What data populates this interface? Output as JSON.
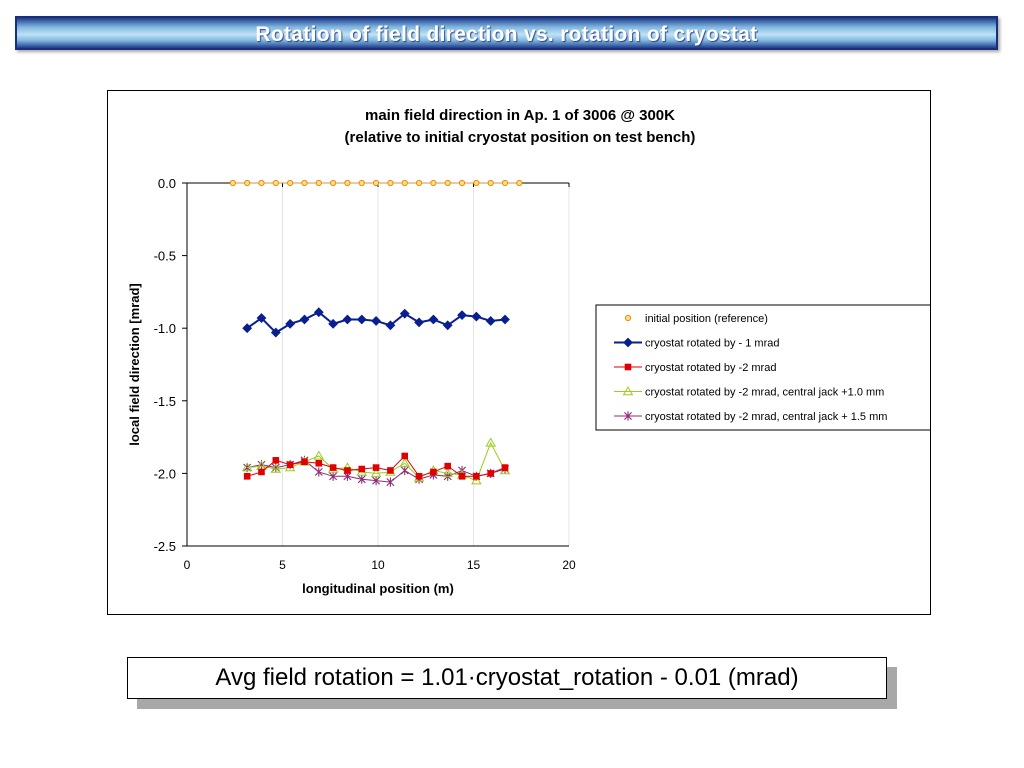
{
  "slide": {
    "title": "Rotation of field direction vs. rotation of cryostat",
    "formula": "Avg field rotation = 1.01·cryostat_rotation - 0.01 (mrad)"
  },
  "chart_data": {
    "type": "line",
    "title": "main field direction in Ap. 1 of 3006 @ 300K",
    "subtitle": "(relative to initial cryostat position on test bench)",
    "xlabel": "longitudinal position (m)",
    "ylabel": "local field direction [mrad]",
    "xlim": [
      0,
      20
    ],
    "ylim": [
      -2.5,
      0.0
    ],
    "xticks": [
      "0",
      "5",
      "10",
      "15",
      "20"
    ],
    "yticks": [
      "0.0",
      "-0.5",
      "-1.0",
      "-1.5",
      "-2.0",
      "-2.5"
    ],
    "grid": "vertical",
    "legend_position": "right",
    "series": [
      {
        "name": "initial position (reference)",
        "color": "#f08a00",
        "marker": "circle",
        "x": [
          2.4,
          3.15,
          3.9,
          4.65,
          5.4,
          6.15,
          6.9,
          7.65,
          8.4,
          9.15,
          9.9,
          10.65,
          11.4,
          12.15,
          12.9,
          13.65,
          14.4,
          15.15,
          15.9,
          16.65,
          17.4
        ],
        "y": [
          0,
          0,
          0,
          0,
          0,
          0,
          0,
          0,
          0,
          0,
          0,
          0,
          0,
          0,
          0,
          0,
          0,
          0,
          0,
          0,
          0
        ]
      },
      {
        "name": "cryostat rotated by - 1 mrad",
        "color": "#0a1f8f",
        "marker": "diamond",
        "x": [
          3.15,
          3.9,
          4.65,
          5.4,
          6.15,
          6.9,
          7.65,
          8.4,
          9.15,
          9.9,
          10.65,
          11.4,
          12.15,
          12.9,
          13.65,
          14.4,
          15.15,
          15.9,
          16.65
        ],
        "y": [
          -1.0,
          -0.93,
          -1.03,
          -0.97,
          -0.94,
          -0.89,
          -0.97,
          -0.94,
          -0.94,
          -0.95,
          -0.98,
          -0.9,
          -0.96,
          -0.94,
          -0.98,
          -0.91,
          -0.92,
          -0.95,
          -0.94
        ]
      },
      {
        "name": "cryostat rotated by -2 mrad",
        "color": "#e00000",
        "marker": "square",
        "x": [
          3.15,
          3.9,
          4.65,
          5.4,
          6.15,
          6.9,
          7.65,
          8.4,
          9.15,
          9.9,
          10.65,
          11.4,
          12.15,
          12.9,
          13.65,
          14.4,
          15.15,
          15.9,
          16.65
        ],
        "y": [
          -2.02,
          -1.99,
          -1.91,
          -1.94,
          -1.92,
          -1.93,
          -1.96,
          -1.98,
          -1.97,
          -1.96,
          -1.98,
          -1.88,
          -2.02,
          -1.99,
          -1.95,
          -2.02,
          -2.02,
          -2.0,
          -1.96
        ]
      },
      {
        "name": "cryostat rotated by -2 mrad, central jack +1.0 mm",
        "color": "#9ccc1c",
        "marker": "triangle",
        "x": [
          3.15,
          3.9,
          4.65,
          5.4,
          6.15,
          6.9,
          7.65,
          8.4,
          9.15,
          9.9,
          10.65,
          11.4,
          12.15,
          12.9,
          13.65,
          14.4,
          15.15,
          15.9,
          16.65
        ],
        "y": [
          -1.96,
          -1.95,
          -1.97,
          -1.96,
          -1.92,
          -1.88,
          -1.97,
          -1.96,
          -1.99,
          -2.0,
          -1.99,
          -1.93,
          -2.03,
          -1.98,
          -2.0,
          -2.01,
          -2.05,
          -1.79,
          -1.98
        ]
      },
      {
        "name": "cryostat rotated by -2 mrad, central jack + 1.5 mm",
        "color": "#8e2a78",
        "marker": "star",
        "x": [
          3.15,
          3.9,
          4.65,
          5.4,
          6.15,
          6.9,
          7.65,
          8.4,
          9.15,
          9.9,
          10.65,
          11.4,
          12.15,
          12.9,
          13.65,
          14.4,
          15.15,
          15.9,
          16.65
        ],
        "y": [
          -1.96,
          -1.94,
          -1.96,
          -1.94,
          -1.91,
          -1.99,
          -2.02,
          -2.02,
          -2.04,
          -2.05,
          -2.06,
          -1.98,
          -2.04,
          -2.01,
          -2.02,
          -1.98,
          -2.02,
          -2.0,
          -1.97
        ]
      }
    ]
  }
}
